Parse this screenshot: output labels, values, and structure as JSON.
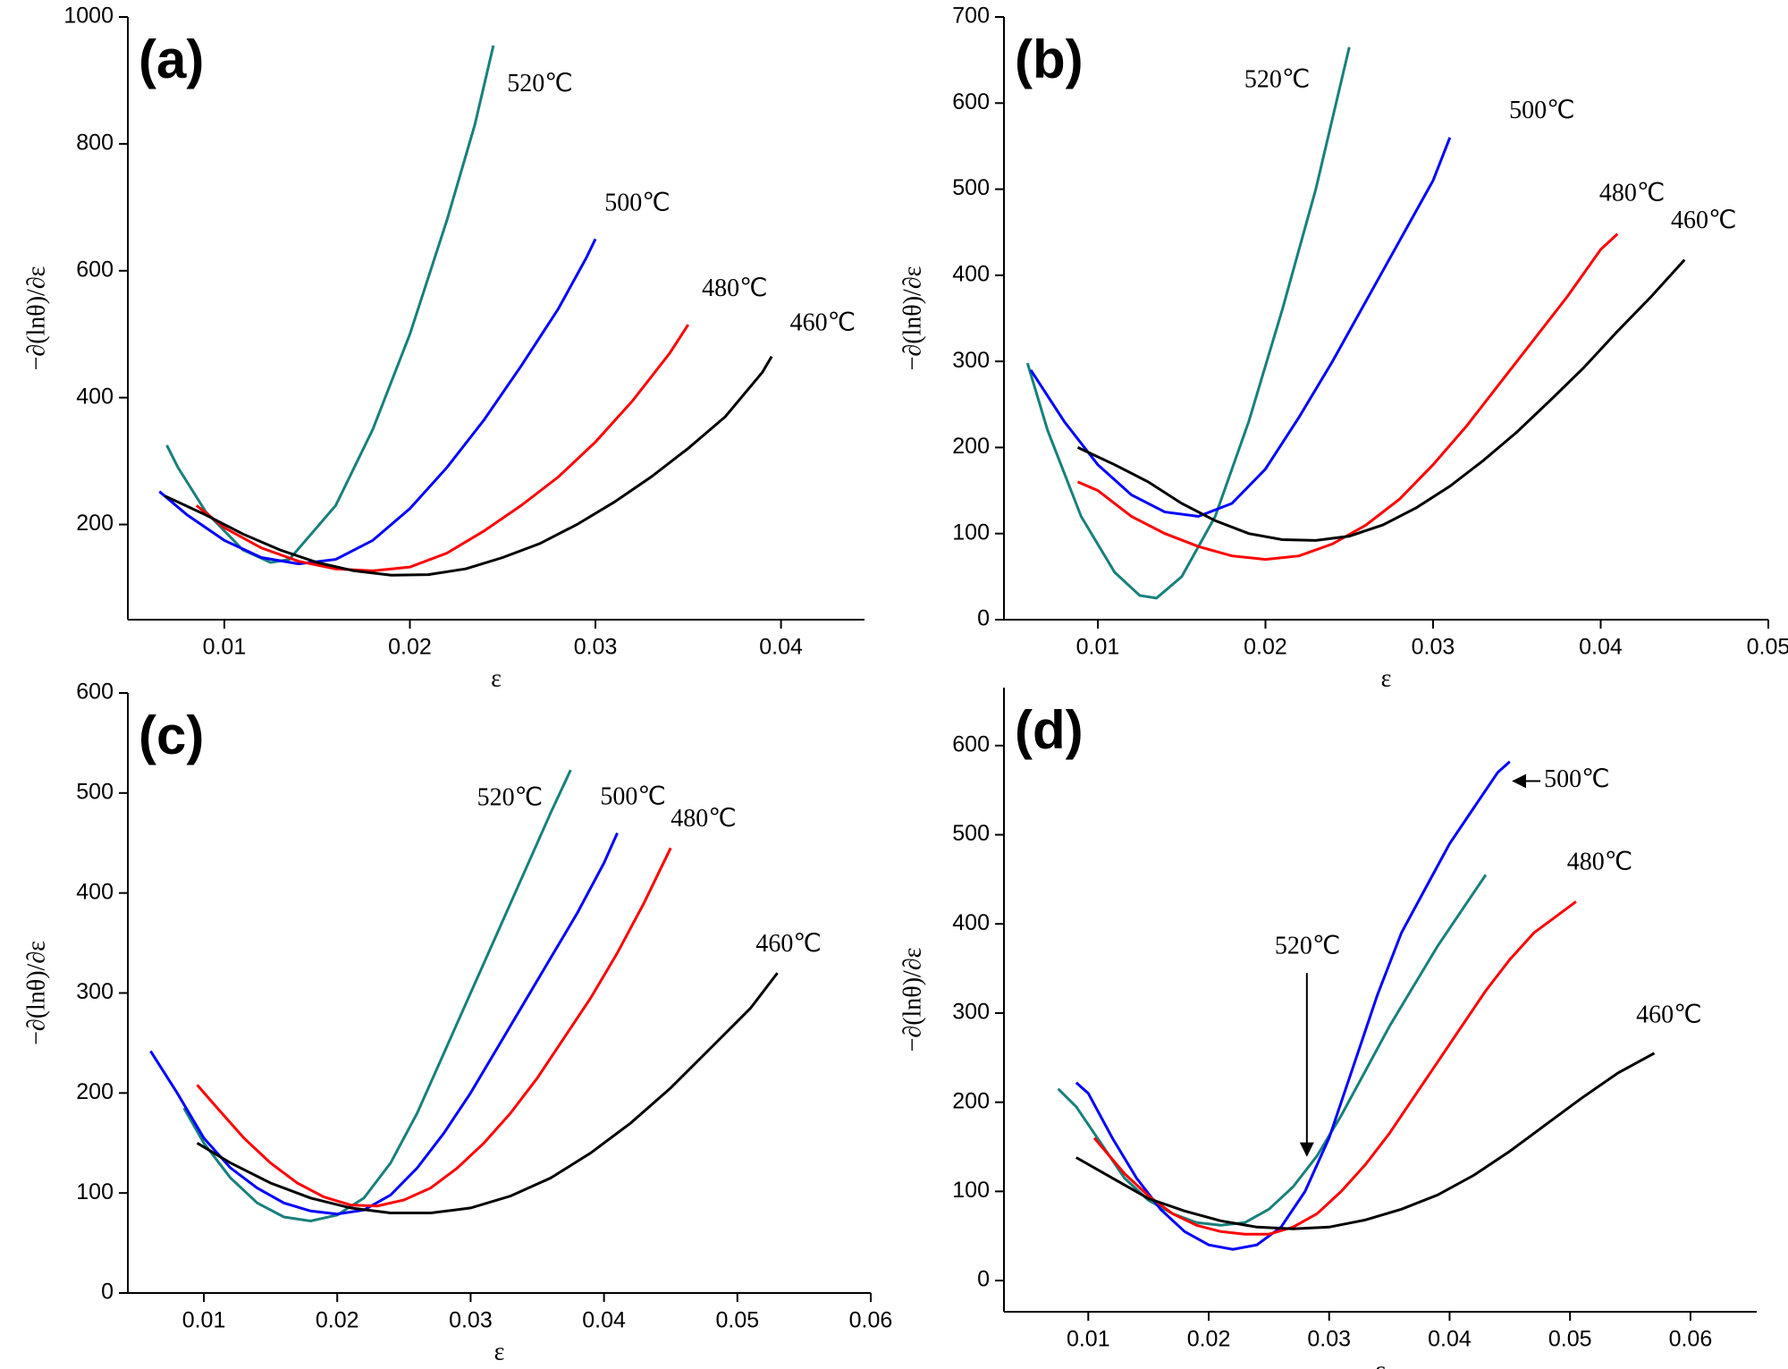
{
  "chart_data": [
    {
      "type": "line",
      "panel_label": "(a)",
      "x_label": "ε",
      "y_label": "−∂(lnθ)/∂ε",
      "xlim": [
        0.0048,
        0.0445
      ],
      "ylim": [
        50,
        1000
      ],
      "xticks": [
        0.01,
        0.02,
        0.03,
        0.04
      ],
      "yticks": [
        200,
        400,
        600,
        800,
        1000
      ],
      "series": [
        {
          "name": "520℃",
          "color": "#17807c",
          "x": [
            0.0069,
            0.0075,
            0.009,
            0.011,
            0.0125,
            0.0135,
            0.016,
            0.018,
            0.02,
            0.022,
            0.0235,
            0.0245
          ],
          "values": [
            325,
            290,
            220,
            160,
            140,
            145,
            230,
            350,
            500,
            680,
            830,
            955
          ]
        },
        {
          "name": "500℃",
          "color": "#0000ff",
          "x": [
            0.0065,
            0.008,
            0.01,
            0.012,
            0.014,
            0.016,
            0.018,
            0.02,
            0.022,
            0.024,
            0.026,
            0.028,
            0.0295,
            0.03
          ],
          "values": [
            252,
            215,
            175,
            148,
            138,
            145,
            175,
            225,
            290,
            365,
            450,
            540,
            620,
            650
          ]
        },
        {
          "name": "480℃",
          "color": "#ff0000",
          "x": [
            0.0085,
            0.01,
            0.012,
            0.014,
            0.016,
            0.018,
            0.02,
            0.022,
            0.024,
            0.026,
            0.028,
            0.03,
            0.032,
            0.034,
            0.035
          ],
          "values": [
            230,
            195,
            163,
            142,
            130,
            127,
            133,
            155,
            190,
            230,
            275,
            330,
            395,
            470,
            515
          ]
        },
        {
          "name": "460℃",
          "color": "#000000",
          "x": [
            0.0068,
            0.009,
            0.011,
            0.013,
            0.015,
            0.017,
            0.019,
            0.021,
            0.023,
            0.025,
            0.027,
            0.029,
            0.031,
            0.033,
            0.035,
            0.037,
            0.039,
            0.0395
          ],
          "values": [
            245,
            215,
            185,
            160,
            140,
            127,
            120,
            121,
            130,
            148,
            170,
            200,
            235,
            275,
            320,
            370,
            440,
            465
          ]
        }
      ]
    },
    {
      "type": "line",
      "panel_label": "(b)",
      "x_label": "ε",
      "y_label": "−∂(lnθ)/∂ε",
      "xlim": [
        0.0044,
        0.05
      ],
      "ylim": [
        0,
        700
      ],
      "xticks": [
        0.01,
        0.02,
        0.03,
        0.04,
        0.05
      ],
      "yticks": [
        0,
        100,
        200,
        300,
        400,
        500,
        600,
        700
      ],
      "series": [
        {
          "name": "520℃",
          "color": "#17807c",
          "x": [
            0.0058,
            0.007,
            0.009,
            0.011,
            0.0125,
            0.0135,
            0.015,
            0.017,
            0.019,
            0.021,
            0.023,
            0.025
          ],
          "values": [
            298,
            220,
            120,
            55,
            28,
            25,
            50,
            120,
            230,
            360,
            500,
            665
          ]
        },
        {
          "name": "500℃",
          "color": "#0000ff",
          "x": [
            0.006,
            0.008,
            0.01,
            0.012,
            0.014,
            0.016,
            0.018,
            0.02,
            0.022,
            0.024,
            0.026,
            0.028,
            0.03,
            0.031
          ],
          "values": [
            290,
            230,
            180,
            145,
            125,
            120,
            135,
            175,
            235,
            300,
            370,
            440,
            510,
            560
          ]
        },
        {
          "name": "480℃",
          "color": "#ff0000",
          "x": [
            0.0088,
            0.01,
            0.012,
            0.014,
            0.016,
            0.018,
            0.02,
            0.022,
            0.024,
            0.026,
            0.028,
            0.03,
            0.032,
            0.034,
            0.036,
            0.038,
            0.04,
            0.041
          ],
          "values": [
            160,
            150,
            120,
            100,
            85,
            74,
            70,
            74,
            88,
            110,
            140,
            180,
            225,
            275,
            325,
            375,
            430,
            448
          ]
        },
        {
          "name": "460℃",
          "color": "#000000",
          "x": [
            0.0088,
            0.011,
            0.013,
            0.015,
            0.017,
            0.019,
            0.021,
            0.023,
            0.025,
            0.027,
            0.029,
            0.031,
            0.033,
            0.035,
            0.037,
            0.039,
            0.041,
            0.043,
            0.045
          ],
          "values": [
            200,
            180,
            160,
            135,
            115,
            100,
            93,
            92,
            97,
            110,
            130,
            155,
            185,
            218,
            255,
            293,
            335,
            375,
            418
          ]
        }
      ]
    },
    {
      "type": "line",
      "panel_label": "(c)",
      "x_label": "ε",
      "y_label": "−∂(lnθ)/∂ε",
      "xlim": [
        0.0043,
        0.06
      ],
      "ylim": [
        0,
        600
      ],
      "xticks": [
        0.01,
        0.02,
        0.03,
        0.04,
        0.05,
        0.06
      ],
      "yticks": [
        0,
        100,
        200,
        300,
        400,
        500,
        600
      ],
      "series": [
        {
          "name": "520℃",
          "color": "#17807c",
          "x": [
            0.0085,
            0.01,
            0.012,
            0.014,
            0.016,
            0.018,
            0.02,
            0.022,
            0.024,
            0.026,
            0.028,
            0.03,
            0.032,
            0.034,
            0.036,
            0.0375
          ],
          "values": [
            185,
            150,
            115,
            90,
            76,
            72,
            78,
            95,
            130,
            180,
            240,
            300,
            360,
            420,
            480,
            523
          ]
        },
        {
          "name": "500℃",
          "color": "#0000ff",
          "x": [
            0.006,
            0.008,
            0.01,
            0.012,
            0.014,
            0.016,
            0.018,
            0.02,
            0.022,
            0.024,
            0.026,
            0.028,
            0.03,
            0.032,
            0.034,
            0.036,
            0.038,
            0.04,
            0.041
          ],
          "values": [
            242,
            200,
            155,
            125,
            105,
            90,
            82,
            79,
            83,
            98,
            125,
            160,
            200,
            245,
            290,
            335,
            380,
            430,
            460
          ]
        },
        {
          "name": "480℃",
          "color": "#ff0000",
          "x": [
            0.0095,
            0.011,
            0.013,
            0.015,
            0.017,
            0.019,
            0.021,
            0.023,
            0.025,
            0.027,
            0.029,
            0.031,
            0.033,
            0.035,
            0.037,
            0.039,
            0.041,
            0.043,
            0.045
          ],
          "values": [
            208,
            185,
            155,
            130,
            110,
            96,
            88,
            87,
            93,
            105,
            125,
            150,
            180,
            215,
            255,
            295,
            340,
            390,
            445
          ]
        },
        {
          "name": "460℃",
          "color": "#000000",
          "x": [
            0.0095,
            0.012,
            0.015,
            0.018,
            0.021,
            0.024,
            0.027,
            0.03,
            0.033,
            0.036,
            0.039,
            0.042,
            0.045,
            0.048,
            0.051,
            0.053
          ],
          "values": [
            150,
            130,
            110,
            95,
            85,
            80,
            80,
            85,
            97,
            115,
            140,
            170,
            205,
            245,
            285,
            320
          ]
        }
      ]
    },
    {
      "type": "line",
      "panel_label": "(d)",
      "x_label": "ε",
      "y_label": "−∂(lnθ)/∂ε",
      "xlim": [
        0.003,
        0.0655
      ],
      "ylim": [
        -35,
        665
      ],
      "xticks": [
        0.01,
        0.02,
        0.03,
        0.04,
        0.05,
        0.06
      ],
      "yticks": [
        0,
        100,
        200,
        300,
        400,
        500,
        600
      ],
      "series": [
        {
          "name": "520℃",
          "color": "#17807c",
          "x": [
            0.0075,
            0.009,
            0.011,
            0.013,
            0.015,
            0.017,
            0.019,
            0.021,
            0.023,
            0.025,
            0.027,
            0.029,
            0.031,
            0.033,
            0.035,
            0.037,
            0.039,
            0.041,
            0.043
          ],
          "values": [
            215,
            195,
            155,
            115,
            90,
            75,
            65,
            62,
            65,
            80,
            105,
            140,
            185,
            235,
            285,
            330,
            375,
            415,
            455
          ]
        },
        {
          "name": "500℃",
          "color": "#0000ff",
          "x": [
            0.009,
            0.01,
            0.012,
            0.014,
            0.016,
            0.018,
            0.02,
            0.022,
            0.024,
            0.026,
            0.028,
            0.03,
            0.032,
            0.034,
            0.036,
            0.038,
            0.04,
            0.042,
            0.044,
            0.045
          ],
          "values": [
            222,
            210,
            160,
            115,
            80,
            55,
            40,
            35,
            40,
            60,
            100,
            160,
            240,
            320,
            390,
            440,
            490,
            530,
            570,
            582
          ]
        },
        {
          "name": "480℃",
          "color": "#ff0000",
          "x": [
            0.0105,
            0.013,
            0.015,
            0.017,
            0.019,
            0.021,
            0.023,
            0.025,
            0.027,
            0.029,
            0.031,
            0.033,
            0.035,
            0.037,
            0.039,
            0.041,
            0.043,
            0.045,
            0.047,
            0.049,
            0.0505
          ],
          "values": [
            160,
            120,
            95,
            75,
            62,
            55,
            52,
            52,
            60,
            75,
            100,
            130,
            165,
            205,
            245,
            285,
            325,
            360,
            390,
            410,
            425
          ]
        },
        {
          "name": "460℃",
          "color": "#000000",
          "x": [
            0.009,
            0.012,
            0.015,
            0.018,
            0.021,
            0.024,
            0.027,
            0.03,
            0.033,
            0.036,
            0.039,
            0.042,
            0.045,
            0.048,
            0.051,
            0.054,
            0.057
          ],
          "values": [
            138,
            115,
            92,
            78,
            67,
            60,
            58,
            60,
            68,
            80,
            96,
            118,
            145,
            175,
            205,
            233,
            255
          ]
        }
      ]
    }
  ]
}
